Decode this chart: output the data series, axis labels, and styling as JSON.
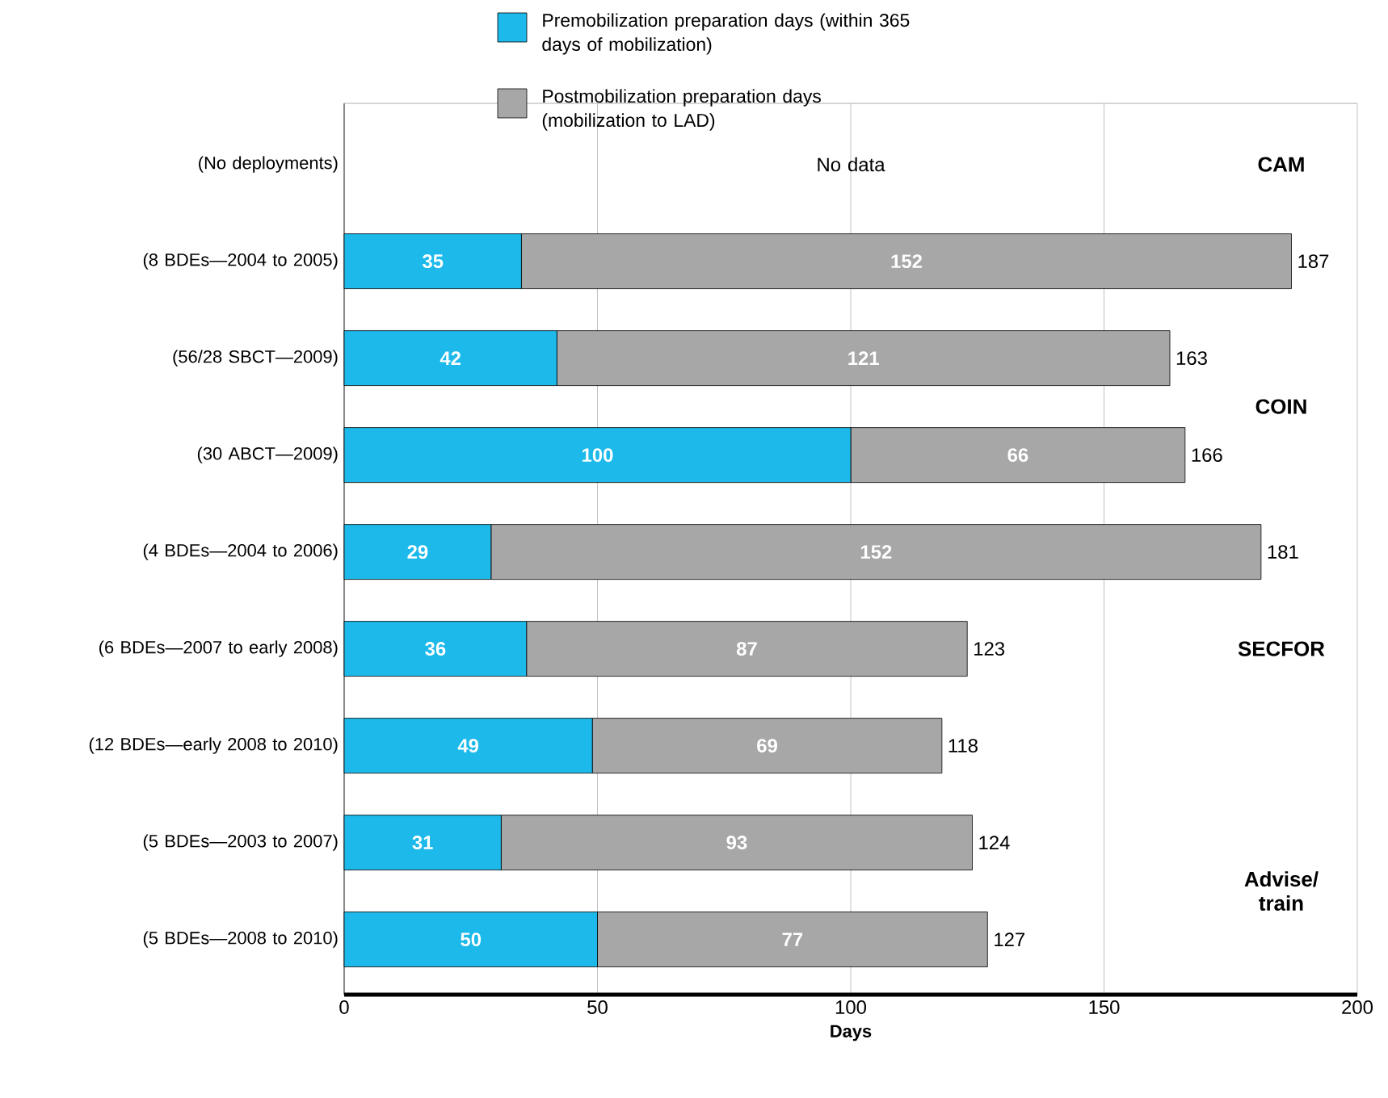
{
  "chart_data": {
    "type": "bar",
    "orientation": "horizontal",
    "stacked": true,
    "xlabel": "Days",
    "categories": [
      "(No deployments)",
      "(8 BDEs—2004 to 2005)",
      "(56/28 SBCT—2009)",
      "(30 ABCT—2009)",
      "(4 BDEs—2004 to 2006)",
      "(6 BDEs—2007 to early 2008)",
      "(12  BDEs—early 2008 to 2010)",
      "(5 BDEs—2003 to 2007)",
      "(5 BDEs—2008 to 2010)"
    ],
    "series": [
      {
        "name": "Premobilization preparation days (within 365 days of mobilization)",
        "color": "#1cb9ea",
        "values": [
          null,
          35,
          42,
          100,
          29,
          36,
          49,
          31,
          50
        ]
      },
      {
        "name": "Postmobilization preparation days (mobilization to LAD)",
        "color": "#a7a7a7",
        "values": [
          null,
          152,
          121,
          66,
          152,
          87,
          69,
          93,
          77
        ]
      }
    ],
    "data_labels": true,
    "totals": [
      null,
      "187",
      "163",
      "166",
      "181",
      "123",
      "118",
      "124",
      "127"
    ],
    "xlim": [
      0,
      200
    ],
    "xticks": [
      0,
      50,
      100,
      150,
      200
    ],
    "grid": "x",
    "legend": "top",
    "annotations": [
      "No data",
      "CAM",
      "COIN",
      "SECFOR",
      "Advise/ train"
    ]
  }
}
